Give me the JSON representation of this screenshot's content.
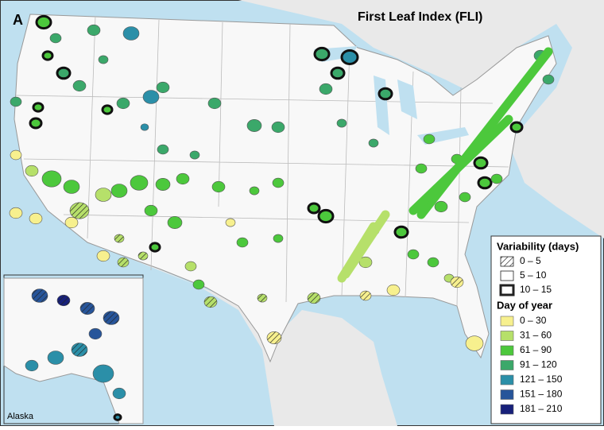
{
  "panel_label": "A",
  "title": "First Leaf Index (FLI)",
  "legend": {
    "variability": {
      "title": "Variability (days)",
      "items": [
        "0 – 5",
        "5 – 10",
        "10 – 15"
      ]
    },
    "day_of_year": {
      "title": "Day of year",
      "items": [
        {
          "label": "0 – 30",
          "color": "#f7f08e"
        },
        {
          "label": "31 – 60",
          "color": "#b6e06a"
        },
        {
          "label": "61 – 90",
          "color": "#4cc83c"
        },
        {
          "label": "91 – 120",
          "color": "#3ba86a"
        },
        {
          "label": "121 – 150",
          "color": "#2b8fa8"
        },
        {
          "label": "151 – 180",
          "color": "#27559a"
        },
        {
          "label": "181 – 210",
          "color": "#17207a"
        }
      ]
    }
  },
  "inset": {
    "label": "Alaska"
  }
}
